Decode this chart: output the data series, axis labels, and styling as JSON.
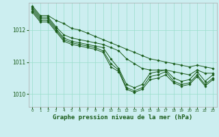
{
  "xlabel": "Graphe pression niveau de la mer (hPa)",
  "bg_color": "#cceef0",
  "grid_color": "#99ddcc",
  "line_color": "#1a5c1a",
  "marker_color": "#1a5c1a",
  "ylim": [
    1009.6,
    1012.85
  ],
  "xlim": [
    -0.5,
    23.5
  ],
  "yticks": [
    1010,
    1011,
    1012
  ],
  "xticks": [
    0,
    1,
    2,
    3,
    4,
    5,
    6,
    7,
    8,
    9,
    10,
    11,
    12,
    13,
    14,
    15,
    16,
    17,
    18,
    19,
    20,
    21,
    22,
    23
  ],
  "series": [
    [
      1012.75,
      1012.45,
      1012.45,
      1012.3,
      1012.2,
      1012.05,
      1012.0,
      1011.9,
      1011.8,
      1011.7,
      1011.6,
      1011.5,
      1011.4,
      1011.3,
      1011.2,
      1011.1,
      1011.05,
      1011.0,
      1010.95,
      1010.9,
      1010.85,
      1010.9,
      1010.85,
      1010.8
    ],
    [
      1012.7,
      1012.4,
      1012.4,
      1012.1,
      1011.85,
      1011.75,
      1011.7,
      1011.65,
      1011.6,
      1011.55,
      1011.45,
      1011.35,
      1011.1,
      1010.95,
      1010.8,
      1010.75,
      1010.75,
      1010.75,
      1010.7,
      1010.65,
      1010.6,
      1010.75,
      1010.65,
      1010.65
    ],
    [
      1012.65,
      1012.35,
      1012.35,
      1012.05,
      1011.75,
      1011.65,
      1011.6,
      1011.55,
      1011.5,
      1011.45,
      1011.1,
      1010.8,
      1010.3,
      1010.2,
      1010.3,
      1010.65,
      1010.7,
      1010.75,
      1010.5,
      1010.4,
      1010.45,
      1010.7,
      1010.4,
      1010.6
    ],
    [
      1012.6,
      1012.3,
      1012.3,
      1012.0,
      1011.7,
      1011.6,
      1011.55,
      1011.5,
      1011.45,
      1011.35,
      1010.95,
      1010.75,
      1010.2,
      1010.1,
      1010.2,
      1010.55,
      1010.6,
      1010.7,
      1010.4,
      1010.3,
      1010.35,
      1010.6,
      1010.3,
      1010.5
    ],
    [
      1012.55,
      1012.25,
      1012.25,
      1011.95,
      1011.65,
      1011.55,
      1011.5,
      1011.45,
      1011.4,
      1011.3,
      1010.85,
      1010.7,
      1010.15,
      1010.05,
      1010.15,
      1010.45,
      1010.5,
      1010.6,
      1010.35,
      1010.25,
      1010.3,
      1010.55,
      1010.25,
      1010.45
    ]
  ]
}
